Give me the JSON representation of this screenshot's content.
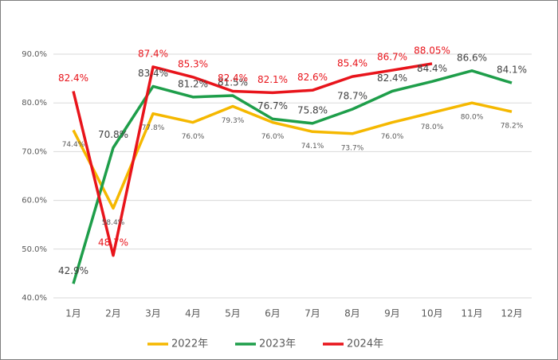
{
  "chart_data": {
    "type": "line",
    "categories": [
      "1月",
      "2月",
      "3月",
      "4月",
      "5月",
      "6月",
      "7月",
      "8月",
      "9月",
      "10月",
      "11月",
      "12月"
    ],
    "series": [
      {
        "name": "2022年",
        "color": "#f5b800",
        "values": [
          74.4,
          58.4,
          77.8,
          76.0,
          79.3,
          76.0,
          74.1,
          73.7,
          76.0,
          78.0,
          80.0,
          78.2
        ],
        "value_labels": [
          "74.4%",
          "58.4%",
          "77.8%",
          "76.0%",
          "79.3%",
          "76.0%",
          "74.1%",
          "73.7%",
          "76.0%",
          "78.0%",
          "80.0%",
          "78.2%"
        ]
      },
      {
        "name": "2023年",
        "color": "#1e9e4a",
        "values": [
          42.9,
          70.8,
          83.4,
          81.2,
          81.5,
          76.7,
          75.8,
          78.7,
          82.4,
          84.4,
          86.6,
          84.1
        ],
        "value_labels": [
          "42.9%",
          "70.8%",
          "83.4%",
          "81.2%",
          "81.5%",
          "76.7%",
          "75.8%",
          "78.7%",
          "82.4%",
          "84.4%",
          "86.6%",
          "84.1%"
        ]
      },
      {
        "name": "2024年",
        "color": "#e8141b",
        "values": [
          82.4,
          48.7,
          87.4,
          85.3,
          82.4,
          82.1,
          82.6,
          85.4,
          86.7,
          88.05,
          null,
          null
        ],
        "value_labels": [
          "82.4%",
          "48.7%",
          "87.4%",
          "85.3%",
          "82.4%",
          "82.1%",
          "82.6%",
          "85.4%",
          "86.7%",
          "88.05%",
          null,
          null
        ]
      }
    ],
    "ylim": [
      40,
      90
    ],
    "yticks": [
      {
        "value": 40,
        "label": "40.0%"
      },
      {
        "value": 50,
        "label": "50.0%"
      },
      {
        "value": 60,
        "label": "60.0%"
      },
      {
        "value": 70,
        "label": "70.0%"
      },
      {
        "value": 80,
        "label": "80.0%"
      },
      {
        "value": 90,
        "label": "90.0%"
      }
    ],
    "grid": true,
    "legend": "bottom"
  }
}
